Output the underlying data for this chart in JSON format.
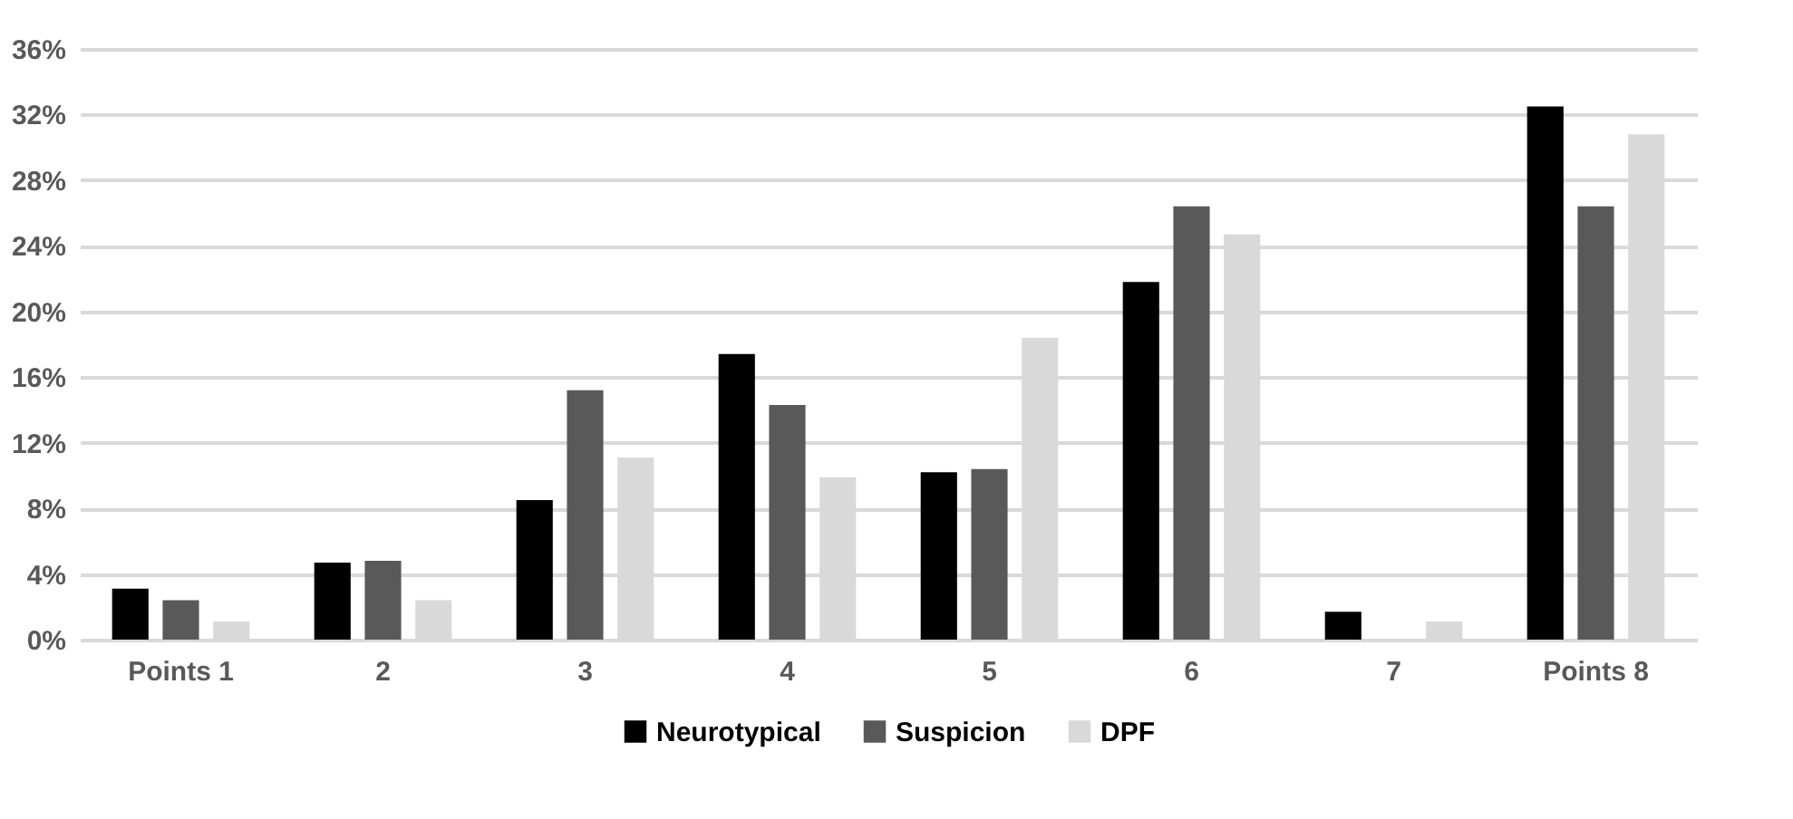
{
  "chart_data": {
    "type": "bar",
    "categories": [
      "Points 1",
      "2",
      "3",
      "4",
      "5",
      "6",
      "7",
      "Points 8"
    ],
    "series": [
      {
        "name": "Neurotypical",
        "color": "#000000",
        "values": [
          3.1,
          4.7,
          8.5,
          17.4,
          10.2,
          21.8,
          1.7,
          32.5
        ]
      },
      {
        "name": "Suspicion",
        "color": "#595959",
        "values": [
          2.4,
          4.8,
          15.2,
          14.3,
          10.4,
          26.4,
          null,
          26.4
        ]
      },
      {
        "name": "DPF",
        "color": "#d9d9d9",
        "values": [
          1.1,
          2.4,
          11.1,
          9.9,
          18.4,
          24.7,
          1.1,
          30.8
        ]
      }
    ],
    "ylim": [
      0,
      36
    ],
    "yticks": [
      {
        "value": 0,
        "label": "0%"
      },
      {
        "value": 4,
        "label": "4%"
      },
      {
        "value": 8,
        "label": "8%"
      },
      {
        "value": 12,
        "label": "12%"
      },
      {
        "value": 16,
        "label": "16%"
      },
      {
        "value": 20,
        "label": "20%"
      },
      {
        "value": 24,
        "label": "24%"
      },
      {
        "value": 28,
        "label": "28%"
      },
      {
        "value": 32,
        "label": "32%"
      },
      {
        "value": 36,
        "label": "36%"
      }
    ],
    "grid": "y",
    "legend": "bottom"
  }
}
